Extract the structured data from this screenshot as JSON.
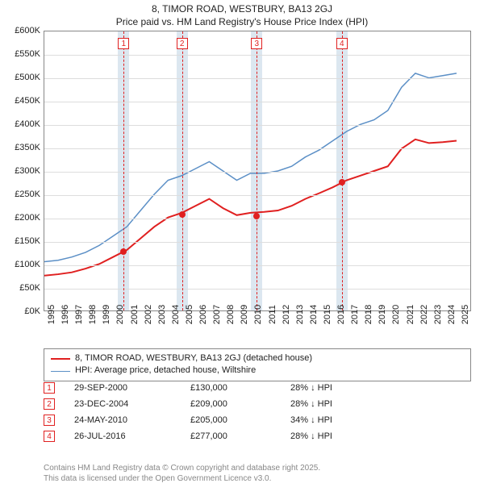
{
  "title1": "8, TIMOR ROAD, WESTBURY, BA13 2GJ",
  "title2": "Price paid vs. HM Land Registry's House Price Index (HPI)",
  "chart": {
    "type": "line",
    "ylim": [
      0,
      600
    ],
    "xlim": [
      1995,
      2026
    ],
    "ytick_step": 50,
    "y_suffix": "K",
    "y_prefix": "£",
    "grid_color": "#dddddd",
    "border_color": "#888888",
    "background_color": "#ffffff",
    "sale_band_color": "#dce7f0",
    "sale_dashed_color": "#e02020",
    "series": [
      {
        "name": "hpi",
        "label": "HPI: Average price, detached house, Wiltshire",
        "color": "#5b8fc6",
        "width": 1.5,
        "years": [
          1995,
          1996,
          1997,
          1998,
          1999,
          2000,
          2001,
          2002,
          2003,
          2004,
          2005,
          2006,
          2007,
          2008,
          2009,
          2010,
          2011,
          2012,
          2013,
          2014,
          2015,
          2016,
          2017,
          2018,
          2019,
          2020,
          2021,
          2022,
          2023,
          2024,
          2025
        ],
        "values": [
          105,
          108,
          115,
          125,
          140,
          160,
          180,
          215,
          250,
          280,
          290,
          305,
          320,
          300,
          280,
          295,
          295,
          300,
          310,
          330,
          345,
          365,
          385,
          400,
          410,
          430,
          480,
          510,
          500,
          505,
          510
        ]
      },
      {
        "name": "subject",
        "label": "8, TIMOR ROAD, WESTBURY, BA13 2GJ (detached house)",
        "color": "#e02020",
        "width": 2,
        "years": [
          1995,
          1996,
          1997,
          1998,
          1999,
          2000,
          2001,
          2002,
          2003,
          2004,
          2005,
          2006,
          2007,
          2008,
          2009,
          2010,
          2011,
          2012,
          2013,
          2014,
          2015,
          2016,
          2017,
          2018,
          2019,
          2020,
          2021,
          2022,
          2023,
          2024,
          2025
        ],
        "values": [
          75,
          78,
          82,
          90,
          100,
          115,
          130,
          155,
          180,
          200,
          210,
          225,
          240,
          220,
          205,
          210,
          212,
          215,
          225,
          240,
          252,
          265,
          280,
          290,
          300,
          310,
          348,
          368,
          360,
          362,
          365
        ]
      }
    ],
    "sales": [
      {
        "marker": "1",
        "date": "29-SEP-2000",
        "year": 2000.75,
        "price_label": "£130,000",
        "price_value": 130,
        "diff_label": "28% ↓ HPI"
      },
      {
        "marker": "2",
        "date": "23-DEC-2004",
        "year": 2004.98,
        "price_label": "£209,000",
        "price_value": 209,
        "diff_label": "28% ↓ HPI"
      },
      {
        "marker": "3",
        "date": "24-MAY-2010",
        "year": 2010.4,
        "price_label": "£205,000",
        "price_value": 205,
        "diff_label": "34% ↓ HPI"
      },
      {
        "marker": "4",
        "date": "26-JUL-2016",
        "year": 2016.57,
        "price_label": "£277,000",
        "price_value": 277,
        "diff_label": "28% ↓ HPI"
      }
    ]
  },
  "footer1": "Contains HM Land Registry data © Crown copyright and database right 2025.",
  "footer2": "This data is licensed under the Open Government Licence v3.0."
}
